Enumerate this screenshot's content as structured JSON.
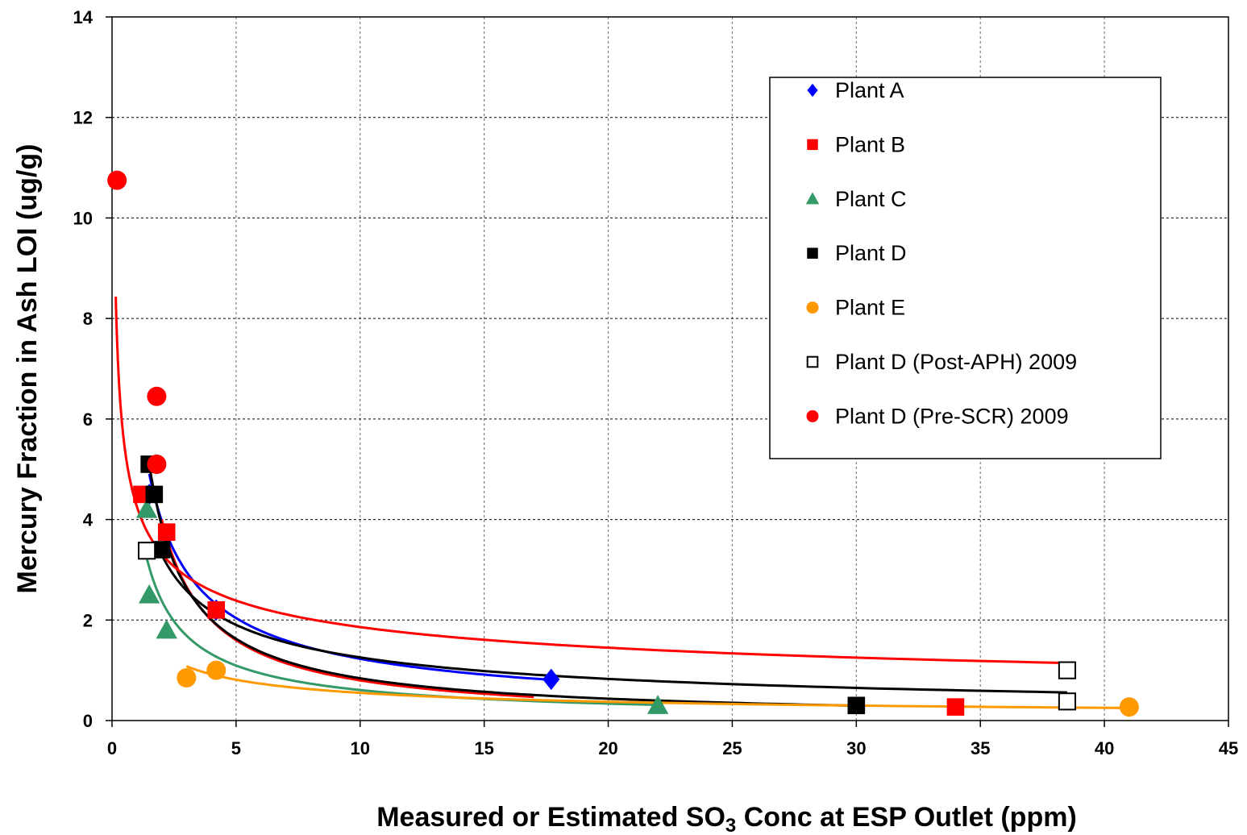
{
  "chart_data": {
    "type": "scatter",
    "title": "",
    "xlabel_parts": [
      "Measured or Estimated SO",
      "3",
      " Conc at ESP Outlet (ppm)"
    ],
    "ylabel": "Mercury Fraction in Ash LOI (ug/g)",
    "xlim": [
      0,
      45
    ],
    "ylim": [
      0,
      14
    ],
    "x_ticks": [
      0,
      5,
      10,
      15,
      20,
      25,
      30,
      35,
      40,
      45
    ],
    "y_ticks": [
      0,
      2,
      4,
      6,
      8,
      10,
      12,
      14
    ],
    "grid": "dashed",
    "legend_position": "top-right",
    "series": [
      {
        "name": "Plant A",
        "marker": "diamond",
        "color": "#0000ff",
        "points": [
          [
            1.5,
            4.5
          ],
          [
            4.2,
            2.2
          ],
          [
            17.7,
            0.82
          ]
        ],
        "trend": {
          "a": 6.6,
          "b": -0.73,
          "x0": 1.5,
          "x1": 17.7,
          "color": "#0000ff"
        }
      },
      {
        "name": "Plant B",
        "marker": "square",
        "color": "#ff0000",
        "points": [
          [
            1.2,
            4.5
          ],
          [
            2.2,
            3.75
          ],
          [
            4.2,
            2.2
          ],
          [
            34.0,
            0.27
          ],
          [
            38.5,
            1.0
          ]
        ],
        "trend": {
          "a": 8.0,
          "b": -1.0,
          "x0": 2.0,
          "x1": 17.0,
          "color": "#ff0000"
        }
      },
      {
        "name": "Plant C",
        "marker": "triangle",
        "color": "#339966",
        "points": [
          [
            1.4,
            4.2
          ],
          [
            1.5,
            2.5
          ],
          [
            2.2,
            1.8
          ],
          [
            22.0,
            0.3
          ]
        ],
        "trend": {
          "a": 4.3,
          "b": -0.85,
          "x0": 1.4,
          "x1": 22.0,
          "color": "#339966"
        }
      },
      {
        "name": "Plant D",
        "marker": "square",
        "color": "#000000",
        "points": [
          [
            1.5,
            5.1
          ],
          [
            1.7,
            4.5
          ],
          [
            2.0,
            3.4
          ],
          [
            30.0,
            0.3
          ]
        ],
        "trend": {
          "a": 7.5,
          "b": -0.95,
          "x0": 1.5,
          "x1": 30.0,
          "color": "#000000"
        }
      },
      {
        "name": "Plant E",
        "marker": "circle",
        "color": "#ff9900",
        "points": [
          [
            3.0,
            0.85
          ],
          [
            4.2,
            1.0
          ],
          [
            41.0,
            0.27
          ]
        ],
        "trend": {
          "a": 2.0,
          "b": -0.56,
          "x0": 3.0,
          "x1": 41.0,
          "color": "#ff9900"
        }
      },
      {
        "name": "Plant D (Post-APH) 2009",
        "marker": "open-square",
        "color": "#000000",
        "points": [
          [
            1.4,
            3.38
          ],
          [
            38.5,
            0.38
          ],
          [
            38.5,
            1.0
          ]
        ],
        "trend": {
          "a": 5.0,
          "b": -0.6,
          "x0": 2.0,
          "x1": 38.5,
          "color": "#000000"
        }
      },
      {
        "name": "Plant D (Pre-SCR) 2009",
        "marker": "circle",
        "color": "#ff0000",
        "points": [
          [
            0.2,
            10.75
          ],
          [
            1.8,
            6.45
          ],
          [
            1.8,
            5.1
          ]
        ],
        "trend": {
          "a": 4.26,
          "b": -0.36,
          "x0": 0.15,
          "x1": 38.5,
          "color": "#ff0000"
        }
      }
    ]
  }
}
